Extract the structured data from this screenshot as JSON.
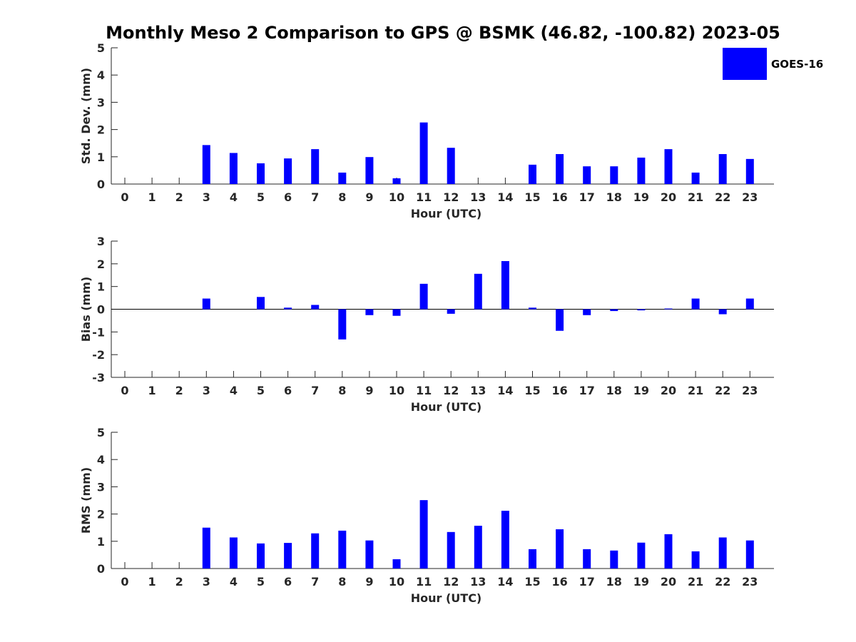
{
  "chart_data": {
    "title": "Monthly Meso 2 Comparison to GPS @ BSMK (46.82, -100.82) 2023-05",
    "legend": [
      {
        "name": "GOES-16",
        "color": "#0000ff"
      }
    ],
    "legend_placement": "top-right",
    "panels": [
      {
        "type": "bar",
        "ylabel": "Std. Dev. (mm)",
        "xlabel": "Hour (UTC)",
        "ylim": [
          0,
          5
        ],
        "yticks": [
          "0",
          "1",
          "2",
          "3",
          "4",
          "5"
        ],
        "grid": false,
        "categories": [
          "0",
          "1",
          "2",
          "3",
          "4",
          "5",
          "6",
          "7",
          "8",
          "9",
          "10",
          "11",
          "12",
          "13",
          "14",
          "15",
          "16",
          "17",
          "18",
          "19",
          "20",
          "21",
          "22",
          "23"
        ],
        "series": [
          {
            "name": "GOES-16",
            "values": [
              0,
              0,
              0,
              1.43,
              1.14,
              0.76,
              0.94,
              1.28,
              0.42,
              0.99,
              0.21,
              2.26,
              1.33,
              0,
              0,
              0.71,
              1.1,
              0.65,
              0.65,
              0.97,
              1.28,
              0.42,
              1.1,
              0.92
            ]
          }
        ]
      },
      {
        "type": "bar",
        "ylabel": "Bias (mm)",
        "xlabel": "Hour (UTC)",
        "ylim": [
          -3,
          3
        ],
        "yticks": [
          "-3",
          "-2",
          "-1",
          "0",
          "1",
          "2",
          "3"
        ],
        "grid": false,
        "categories": [
          "0",
          "1",
          "2",
          "3",
          "4",
          "5",
          "6",
          "7",
          "8",
          "9",
          "10",
          "11",
          "12",
          "13",
          "14",
          "15",
          "16",
          "17",
          "18",
          "19",
          "20",
          "21",
          "22",
          "23"
        ],
        "series": [
          {
            "name": "GOES-16",
            "values": [
              0,
              0,
              0,
              0.47,
              0,
              0.54,
              0.07,
              0.19,
              -1.33,
              -0.26,
              -0.29,
              1.12,
              -0.2,
              1.56,
              2.12,
              0.07,
              -0.95,
              -0.26,
              -0.08,
              -0.05,
              0.03,
              0.47,
              -0.22,
              0.47
            ]
          }
        ]
      },
      {
        "type": "bar",
        "ylabel": "RMS (mm)",
        "xlabel": "Hour (UTC)",
        "ylim": [
          0,
          5
        ],
        "yticks": [
          "0",
          "1",
          "2",
          "3",
          "4",
          "5"
        ],
        "grid": false,
        "categories": [
          "0",
          "1",
          "2",
          "3",
          "4",
          "5",
          "6",
          "7",
          "8",
          "9",
          "10",
          "11",
          "12",
          "13",
          "14",
          "15",
          "16",
          "17",
          "18",
          "19",
          "20",
          "21",
          "22",
          "23"
        ],
        "series": [
          {
            "name": "GOES-16",
            "values": [
              0,
              0,
              0,
              1.5,
              1.14,
              0.92,
              0.94,
              1.29,
              1.39,
              1.03,
              0.34,
              2.51,
              1.34,
              1.57,
              2.12,
              0.71,
              1.44,
              0.71,
              0.66,
              0.95,
              1.26,
              0.63,
              1.14,
              1.03
            ]
          }
        ]
      }
    ]
  }
}
